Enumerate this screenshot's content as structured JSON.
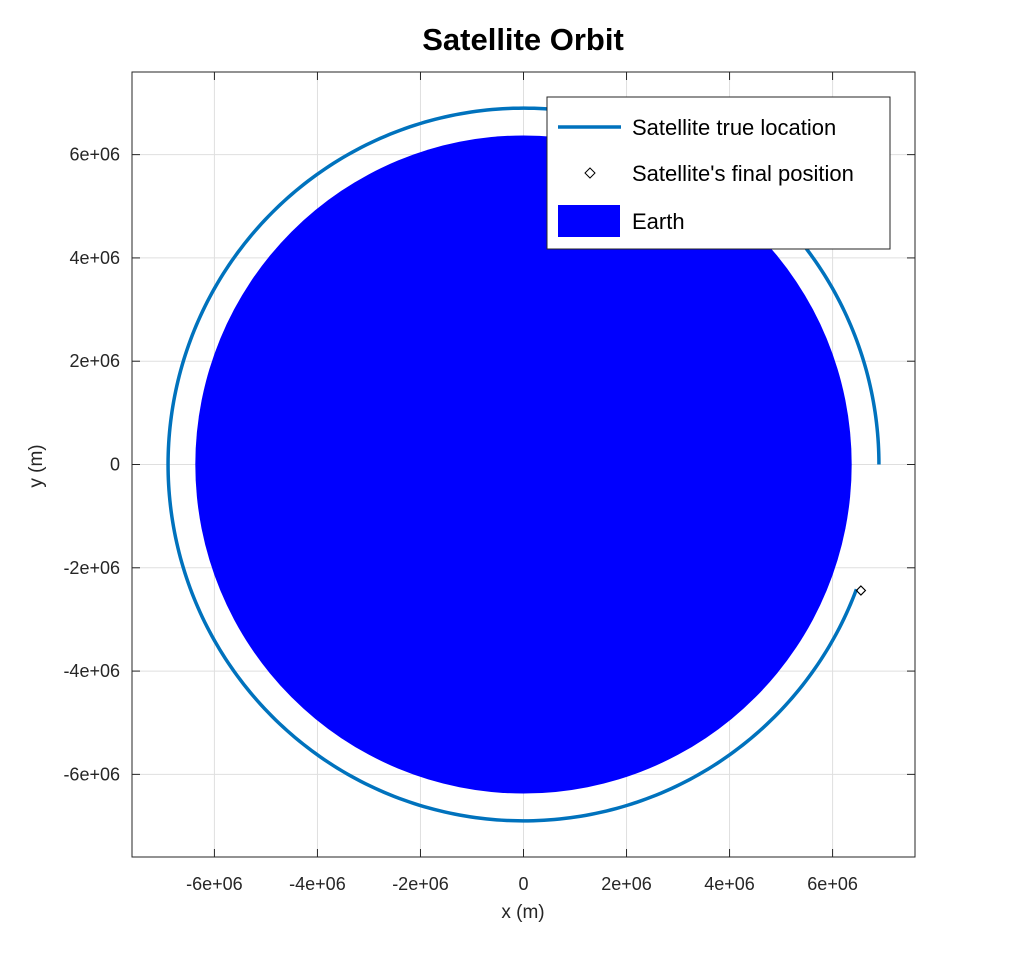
{
  "chart_data": {
    "type": "line",
    "title": "Satellite Orbit",
    "xlabel": "x (m)",
    "ylabel": "y (m)",
    "xlim": [
      -7600000,
      7600000
    ],
    "ylim": [
      -7600000,
      7600000
    ],
    "xticks": [
      -6000000,
      -4000000,
      -2000000,
      0,
      2000000,
      4000000,
      6000000
    ],
    "yticks": [
      -6000000,
      -4000000,
      -2000000,
      0,
      2000000,
      4000000,
      6000000
    ],
    "xtick_labels": [
      "-6e+06",
      "-4e+06",
      "-2e+06",
      "0",
      "2e+06",
      "4e+06",
      "6e+06"
    ],
    "ytick_labels": [
      "-6e+06",
      "-4e+06",
      "-2e+06",
      "0",
      "2e+06",
      "4e+06",
      "6e+06"
    ],
    "grid": true,
    "legend_position": "top-right",
    "series": [
      {
        "name": "Satellite true location",
        "kind": "orbit-line",
        "color": "#0072BD",
        "radius": 6900000,
        "start_angle_deg": 0,
        "end_angle_deg": 339.5
      },
      {
        "name": "Satellite's final position",
        "kind": "marker",
        "marker": "diamond",
        "color": "#000000",
        "x": 6550000,
        "y": -2440000
      },
      {
        "name": "Earth",
        "kind": "filled-circle",
        "color": "#0000FF",
        "center": [
          0,
          0
        ],
        "radius": 6371000
      }
    ]
  }
}
